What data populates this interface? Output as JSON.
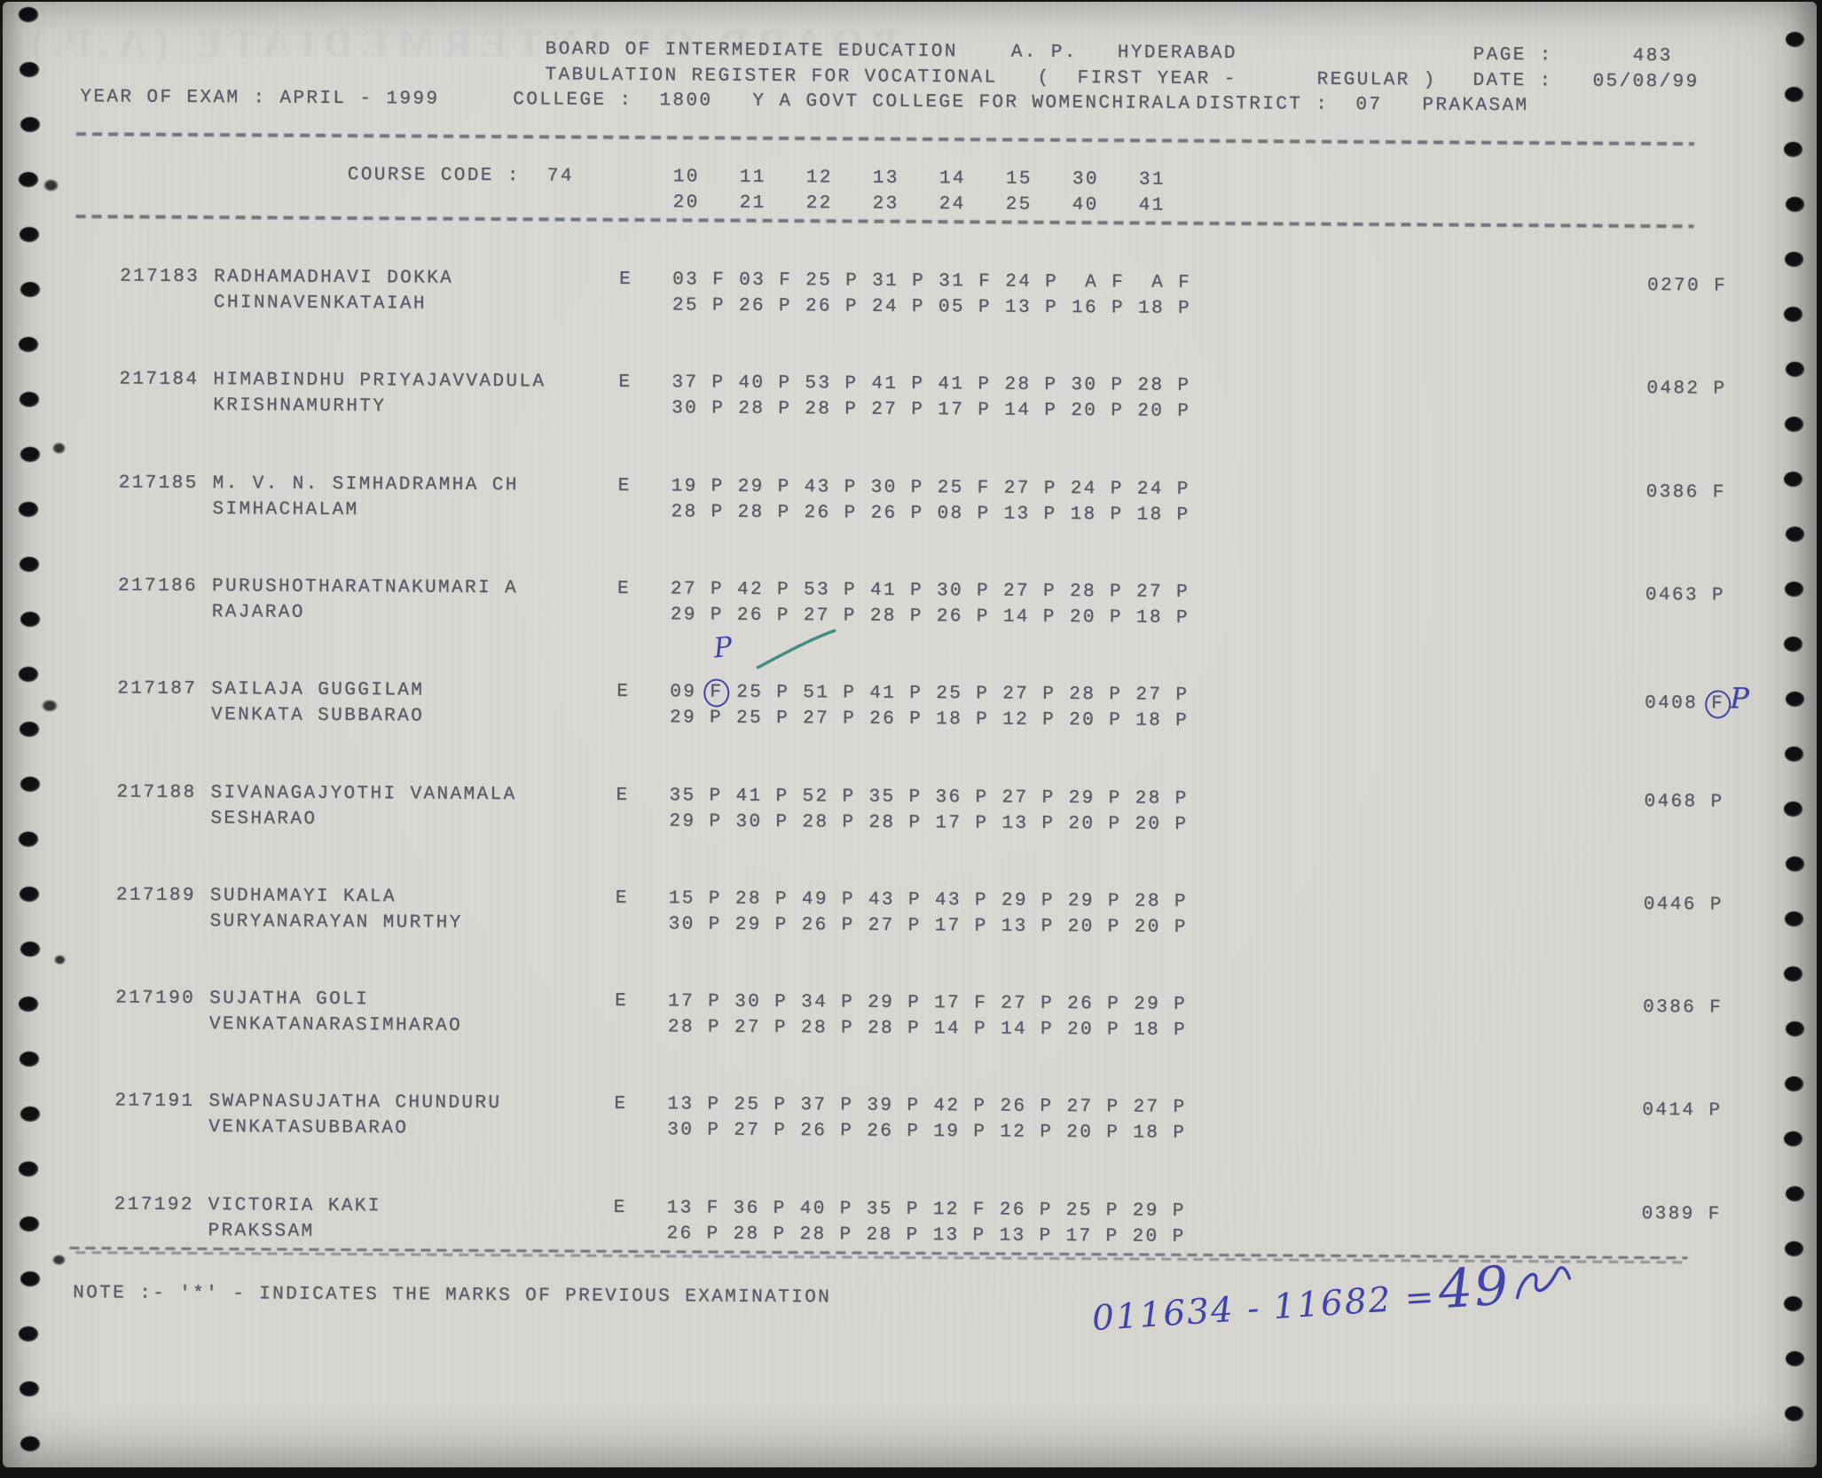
{
  "colors": {
    "paper": "#d6d5d0",
    "ink": "#575c68",
    "handwriting_blue": "#4144ab",
    "check_green": "#2f8577",
    "background": "#141414"
  },
  "header": {
    "title": "BOARD OF INTERMEDIATE EDUCATION    A. P.   HYDERABAD",
    "page_label": "PAGE :",
    "page_value": "483",
    "subtitle": "TABULATION REGISTER FOR VOCATIONAL   (  FIRST YEAR -      REGULAR )",
    "date_label": "DATE :",
    "date_value": "05/08/99",
    "year_of_exam": "YEAR OF EXAM : APRIL - 1999",
    "college": "COLLEGE :  1800   Y A GOVT COLLEGE FOR WOMENCHIRALA",
    "district": "DISTRICT :  07   PRAKASAM"
  },
  "table": {
    "course_code_label": "COURSE CODE :  74",
    "subject_codes_row1": "10   11   12   13   14   15   30   31",
    "subject_codes_row2": "20   21   22   23   24   25   40   41"
  },
  "rows": [
    {
      "regno": "217183",
      "name1": "RADHAMADHAVI DOKKA",
      "name2": "CHINNAVENKATAIAH",
      "medium": "E",
      "marks1": "03 F 03 F 25 P 31 P 31 F 24 P  A F  A F",
      "marks2": "25 P 26 P 26 P 24 P 05 P 13 P 16 P 18 P",
      "total": "0270 F"
    },
    {
      "regno": "217184",
      "name1": "HIMABINDHU PRIYAJAVVADULA",
      "name2": "KRISHNAMURHTY",
      "medium": "E",
      "marks1": "37 P 40 P 53 P 41 P 41 P 28 P 30 P 28 P",
      "marks2": "30 P 28 P 28 P 27 P 17 P 14 P 20 P 20 P",
      "total": "0482 P"
    },
    {
      "regno": "217185",
      "name1": "M. V. N. SIMHADRAMHA CH",
      "name2": "SIMHACHALAM",
      "medium": "E",
      "marks1": "19 P 29 P 43 P 30 P 25 F 27 P 24 P 24 P",
      "marks2": "28 P 28 P 26 P 26 P 08 P 13 P 18 P 18 P",
      "total": "0386 F"
    },
    {
      "regno": "217186",
      "name1": "PURUSHOTHARATNAKUMARI A",
      "name2": "RAJARAO",
      "medium": "E",
      "marks1": "27 P 42 P 53 P 41 P 30 P 27 P 28 P 27 P",
      "marks2": "29 P 26 P 27 P 28 P 26 P 14 P 20 P 18 P",
      "total": "0463 P"
    },
    {
      "regno": "217187",
      "name1": "SAILAJA GUGGILAM",
      "name2": "VENKATA SUBBARAO",
      "medium": "E",
      "marks1_pre": "09 ",
      "marks1_circled": "F",
      "marks1_post": " 25 P 51 P 41 P 25 P 27 P 28 P 27 P",
      "marks2": "29 P 25 P 27 P 26 P 18 P 12 P 20 P 18 P",
      "total_value": "0408",
      "total_circled": "F",
      "total_hand": "P"
    },
    {
      "regno": "217188",
      "name1": "SIVANAGAJYOTHI VANAMALA",
      "name2": "SESHARAO",
      "medium": "E",
      "marks1": "35 P 41 P 52 P 35 P 36 P 27 P 29 P 28 P",
      "marks2": "29 P 30 P 28 P 28 P 17 P 13 P 20 P 20 P",
      "total": "0468 P"
    },
    {
      "regno": "217189",
      "name1": "SUDHAMAYI KALA",
      "name2": "SURYANARAYAN MURTHY",
      "medium": "E",
      "marks1": "15 P 28 P 49 P 43 P 43 P 29 P 29 P 28 P",
      "marks2": "30 P 29 P 26 P 27 P 17 P 13 P 20 P 20 P",
      "total": "0446 P"
    },
    {
      "regno": "217190",
      "name1": "SUJATHA GOLI",
      "name2": "VENKATANARASIMHARAO",
      "medium": "E",
      "marks1": "17 P 30 P 34 P 29 P 17 F 27 P 26 P 29 P",
      "marks2": "28 P 27 P 28 P 28 P 14 P 14 P 20 P 18 P",
      "total": "0386 F"
    },
    {
      "regno": "217191",
      "name1": "SWAPNASUJATHA CHUNDURU",
      "name2": "VENKATASUBBARAO",
      "medium": "E",
      "marks1": "13 P 25 P 37 P 39 P 42 P 26 P 27 P 27 P",
      "marks2": "30 P 27 P 26 P 26 P 19 P 12 P 20 P 18 P",
      "total": "0414 P"
    },
    {
      "regno": "217192",
      "name1": "VICTORIA KAKI",
      "name2": "PRAKSSAM",
      "medium": "E",
      "marks1": "13 F 36 P 40 P 35 P 12 F 26 P 25 P 29 P",
      "marks2": "26 P 28 P 28 P 28 P 13 P 13 P 17 P 20 P",
      "total": "0389 F"
    }
  ],
  "footer": {
    "note": "NOTE :- '*' - INDICATES THE MARKS OF PREVIOUS EXAMINATION",
    "hand_calc_left": "011634 - 11682 = ",
    "hand_calc_result": "49"
  },
  "annotations": {
    "row_217187_hand_letter": "P"
  },
  "decor": {
    "ghost_text": "BOARD OF INTERMEDIATE (A.P.) HYDERABAD"
  }
}
